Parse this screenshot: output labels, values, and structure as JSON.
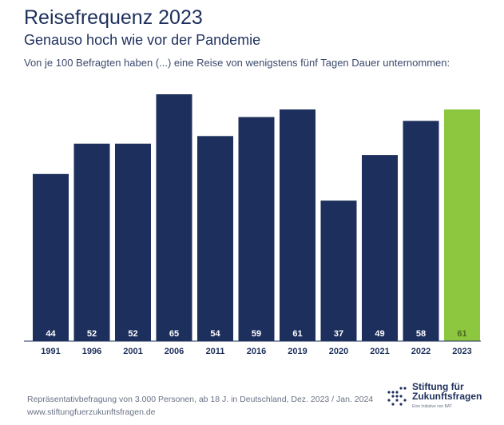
{
  "header": {
    "title": "Reisefrequenz 2023",
    "subtitle": "Genauso hoch wie vor der Pandemie",
    "note": "Von je 100 Befragten haben (...) eine Reise von wenigstens fünf Tagen Dauer unternommen:"
  },
  "chart_data": {
    "type": "bar",
    "title": "Reisefrequenz 2023",
    "categories": [
      "1991",
      "1996",
      "2001",
      "2006",
      "2011",
      "2016",
      "2019",
      "2020",
      "2021",
      "2022",
      "2023"
    ],
    "values": [
      44,
      52,
      52,
      65,
      54,
      59,
      61,
      37,
      49,
      58,
      61
    ],
    "xlabel": "",
    "ylabel": "",
    "ylim": [
      0,
      70
    ],
    "grid": false,
    "colors": {
      "default": "#1d2f5c",
      "highlight": "#8dc63f",
      "label_default": "#ffffff",
      "label_highlight": "#4a6b1e"
    },
    "highlight_category": "2023"
  },
  "footer": {
    "source": "Repräsentativbefragung von 3.000 Personen, ab 18 J. in Deutschland, Dez. 2023 / Jan. 2024",
    "url": "www.stiftungfuerzukunftsfragen.de"
  },
  "logo": {
    "line1": "Stiftung für",
    "line2": "Zukunftsfragen",
    "tagline": "Eine Initiative von BAT"
  }
}
